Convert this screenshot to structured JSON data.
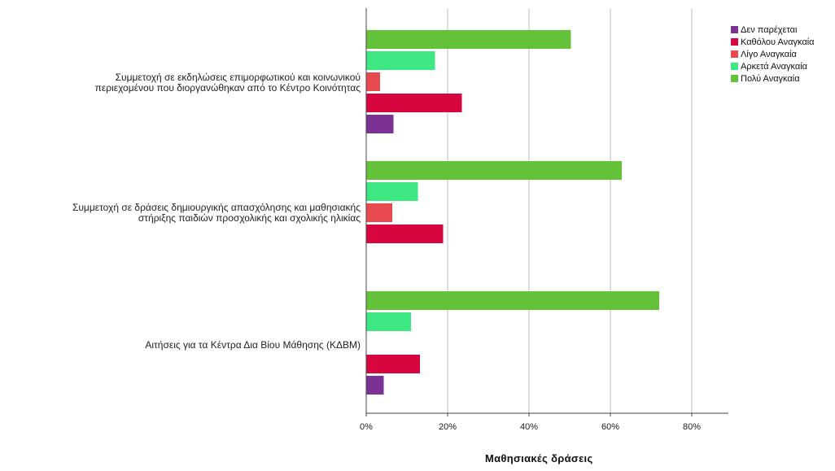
{
  "chart_data": {
    "type": "bar",
    "orientation": "horizontal",
    "xlabel": "Μαθησιακές δράσεις",
    "ylabel": "",
    "xlim": [
      0,
      0.89
    ],
    "x_ticks": [
      0,
      0.2,
      0.4,
      0.6,
      0.8
    ],
    "x_tick_labels": [
      "0%",
      "20%",
      "40%",
      "60%",
      "80%"
    ],
    "grid": "vertical",
    "legend_position": "top-right",
    "categories": [
      "Συμμετοχή σε εκδηλώσεις επιμορφωτικού και κοινωνικού\nπεριεχομένου που διοργανώθηκαν από το Κέντρο Κοινότητας",
      "Συμμετοχή σε δράσεις δημιουργικής απασχόλησης και μαθησιακής\nστήριξης παιδιών προσχολικής και σχολικής ηλικίας",
      "Αιτήσεις για τα Κέντρα Δια Βίου Μάθησης (ΚΔΒΜ)"
    ],
    "series": [
      {
        "name": "Δεν παρέχεται",
        "color": "#7B3294",
        "values": [
          0.066,
          0.0,
          0.042
        ]
      },
      {
        "name": "Καθόλου Αναγκαία",
        "color": "#D7063F",
        "values": [
          0.234,
          0.188,
          0.131
        ]
      },
      {
        "name": "Λίγο Αναγκαία",
        "color": "#E84A50",
        "values": [
          0.033,
          0.063,
          0.0
        ]
      },
      {
        "name": "Αρκετά Αναγκαία",
        "color": "#3DE882",
        "values": [
          0.168,
          0.126,
          0.109
        ]
      },
      {
        "name": "Πολύ Αναγκαία",
        "color": "#63C23A",
        "values": [
          0.502,
          0.627,
          0.719
        ]
      }
    ]
  }
}
